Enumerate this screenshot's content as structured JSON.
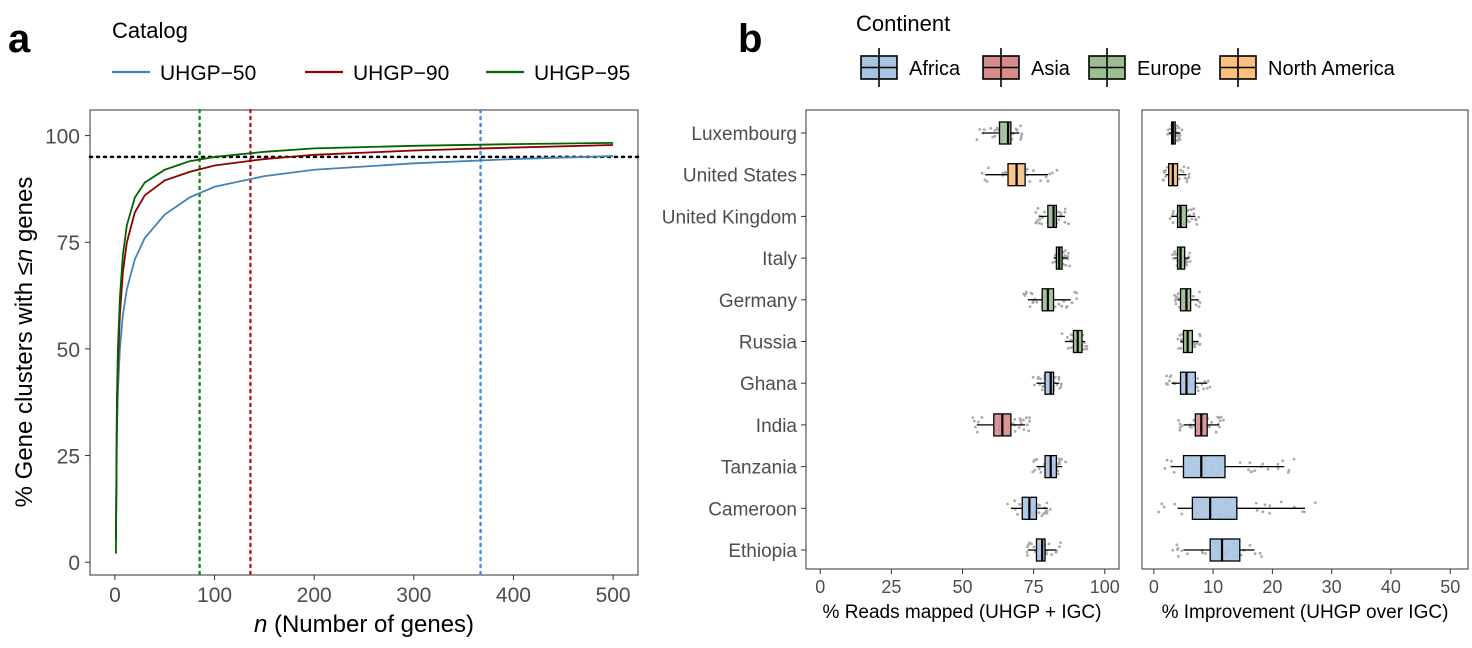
{
  "chart_data": [
    {
      "panel": "a",
      "type": "line",
      "legend": {
        "title": "Catalog",
        "placement": "top"
      },
      "xlabel_italic": "n",
      "xlabel_rest": " (Number of genes)",
      "ylabel_pre": "% Gene clusters with ≤",
      "ylabel_italic": "n",
      "ylabel_post": " genes",
      "xlim": [
        -25,
        525
      ],
      "ylim": [
        -3,
        106
      ],
      "xticks": [
        0,
        100,
        200,
        300,
        400,
        500
      ],
      "yticks": [
        0,
        25,
        50,
        75,
        100
      ],
      "grid": false,
      "series": [
        {
          "name": "UHGP−50",
          "color": "#4682B4",
          "x": [
            1,
            2,
            3,
            5,
            8,
            12,
            20,
            30,
            50,
            75,
            100,
            150,
            200,
            300,
            400,
            500
          ],
          "y": [
            5,
            30,
            40,
            50,
            58,
            64,
            71,
            76,
            81.5,
            85.5,
            88,
            90.5,
            92,
            93.5,
            94.5,
            95.2
          ]
        },
        {
          "name": "UHGP−90",
          "color": "#8B0000",
          "x": [
            1,
            2,
            3,
            5,
            8,
            12,
            20,
            30,
            50,
            75,
            100,
            150,
            200,
            300,
            400,
            500
          ],
          "y": [
            5,
            35,
            46,
            58,
            68,
            75,
            82,
            86,
            89.5,
            91.5,
            93,
            94.5,
            95.5,
            96.5,
            97.2,
            97.8
          ]
        },
        {
          "name": "UHGP−95",
          "color": "#006400",
          "x": [
            1,
            2,
            3,
            5,
            8,
            12,
            20,
            30,
            50,
            75,
            100,
            150,
            200,
            300,
            400,
            500
          ],
          "y": [
            2,
            38,
            50,
            62,
            72,
            79,
            85.5,
            89,
            92,
            94,
            95,
            96.2,
            97,
            97.6,
            98,
            98.3
          ]
        }
      ],
      "reference_lines": {
        "horizontal": {
          "y": 95,
          "color": "#000000"
        },
        "vertical": [
          {
            "x": 85,
            "color": "#1E8C1E"
          },
          {
            "x": 136,
            "color": "#B22222"
          },
          {
            "x": 367,
            "color": "#4A90D9"
          }
        ]
      }
    },
    {
      "panel": "b",
      "type": "boxplot",
      "legend": {
        "title": "Continent",
        "placement": "top",
        "entries": [
          {
            "name": "Africa",
            "color": "#A7C4E2"
          },
          {
            "name": "Asia",
            "color": "#D78C8C"
          },
          {
            "name": "Europe",
            "color": "#9CBE92"
          },
          {
            "name": "North America",
            "color": "#F9C07F"
          }
        ]
      },
      "categories": [
        "Luxembourg",
        "United States",
        "United Kingdom",
        "Italy",
        "Germany",
        "Russia",
        "Ghana",
        "India",
        "Tanzania",
        "Cameroon",
        "Ethiopia"
      ],
      "continent": [
        "Europe",
        "North America",
        "Europe",
        "Europe",
        "Europe",
        "Europe",
        "Africa",
        "Asia",
        "Africa",
        "Africa",
        "Africa"
      ],
      "subplots": [
        {
          "xlabel": "% Reads mapped (UHGP + IGC)",
          "xlim": [
            -5,
            105
          ],
          "xticks": [
            0,
            25,
            50,
            75,
            100
          ],
          "boxes": [
            {
              "whislo": 57,
              "q1": 63,
              "med": 66,
              "q3": 67,
              "whishi": 70
            },
            {
              "whislo": 58,
              "q1": 66,
              "med": 69,
              "q3": 72,
              "whishi": 80
            },
            {
              "whislo": 77,
              "q1": 80,
              "med": 82,
              "q3": 83,
              "whishi": 86
            },
            {
              "whislo": 82,
              "q1": 83,
              "med": 84,
              "q3": 85,
              "whishi": 87
            },
            {
              "whislo": 73,
              "q1": 78,
              "med": 80,
              "q3": 82,
              "whishi": 88
            },
            {
              "whislo": 86,
              "q1": 89,
              "med": 90.5,
              "q3": 92,
              "whishi": 93
            },
            {
              "whislo": 76,
              "q1": 79,
              "med": 81,
              "q3": 82,
              "whishi": 84
            },
            {
              "whislo": 55,
              "q1": 61,
              "med": 64,
              "q3": 67,
              "whishi": 72
            },
            {
              "whislo": 76,
              "q1": 79,
              "med": 81,
              "q3": 83,
              "whishi": 85
            },
            {
              "whislo": 67,
              "q1": 71,
              "med": 73.5,
              "q3": 76,
              "whishi": 80
            },
            {
              "whislo": 73,
              "q1": 76,
              "med": 78,
              "q3": 79,
              "whishi": 83
            }
          ]
        },
        {
          "xlabel": "% Improvement (UHGP over IGC)",
          "xlim": [
            -2,
            53
          ],
          "xticks": [
            0,
            10,
            20,
            30,
            40,
            50
          ],
          "boxes": [
            {
              "whislo": 2.5,
              "q1": 3,
              "med": 3.2,
              "q3": 3.6,
              "whishi": 4.5
            },
            {
              "whislo": 2,
              "q1": 2.5,
              "med": 3.2,
              "q3": 4,
              "whishi": 5.5
            },
            {
              "whislo": 3,
              "q1": 4,
              "med": 4.5,
              "q3": 5.5,
              "whishi": 7
            },
            {
              "whislo": 3.5,
              "q1": 4,
              "med": 4.5,
              "q3": 5.2,
              "whishi": 6
            },
            {
              "whislo": 4,
              "q1": 4.5,
              "med": 5.5,
              "q3": 6.2,
              "whishi": 7.5
            },
            {
              "whislo": 4.5,
              "q1": 5,
              "med": 5.7,
              "q3": 6.5,
              "whishi": 7.5
            },
            {
              "whislo": 3,
              "q1": 4.5,
              "med": 5.5,
              "q3": 7,
              "whishi": 9
            },
            {
              "whislo": 5,
              "q1": 7,
              "med": 8,
              "q3": 9,
              "whishi": 11
            },
            {
              "whislo": 3,
              "q1": 5,
              "med": 8,
              "q3": 12,
              "whishi": 22
            },
            {
              "whislo": 4,
              "q1": 6.5,
              "med": 9.5,
              "q3": 14,
              "whishi": 25.5
            },
            {
              "whislo": 5,
              "q1": 9.5,
              "med": 11.5,
              "q3": 14.5,
              "whishi": 17
            }
          ]
        }
      ]
    }
  ],
  "panel_labels": {
    "a": "a",
    "b": "b"
  }
}
